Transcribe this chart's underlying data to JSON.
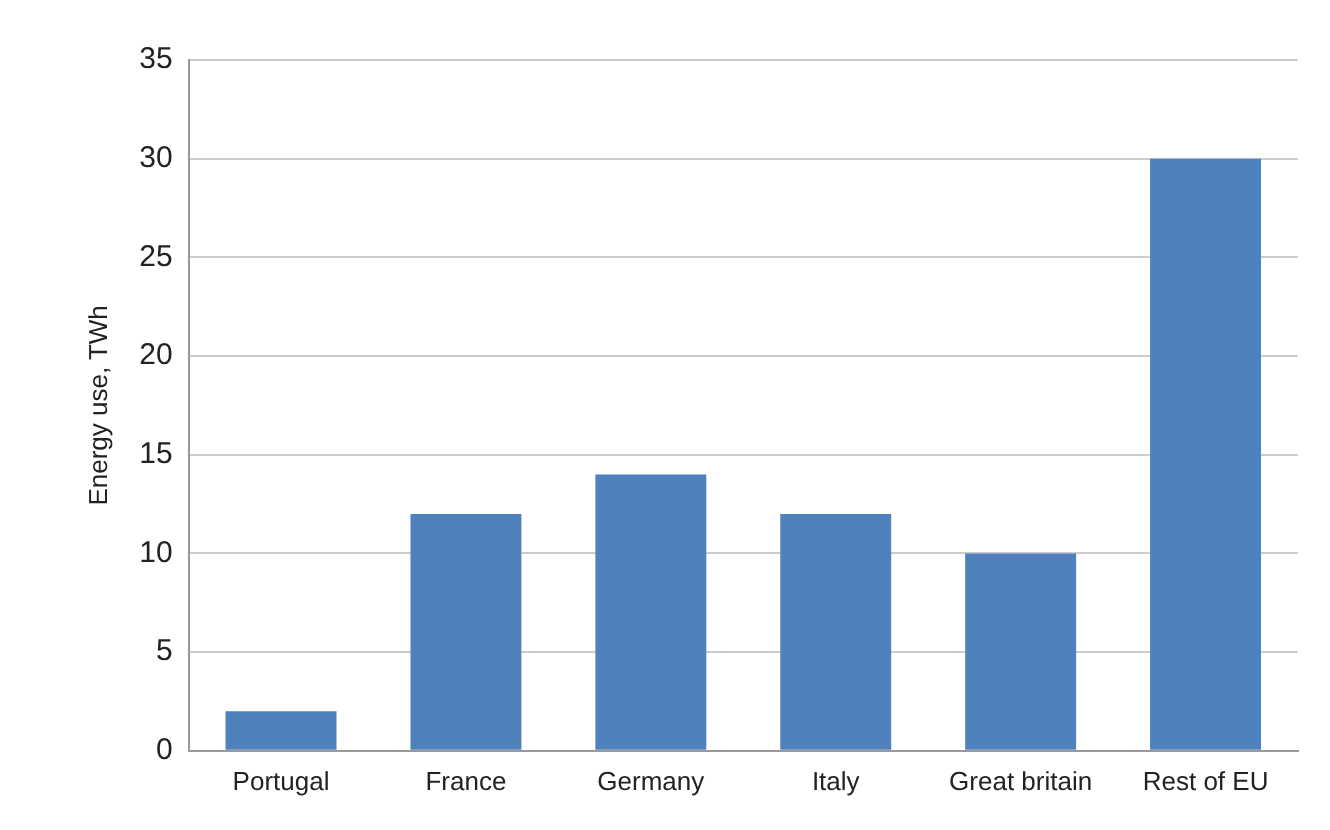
{
  "chart_data": {
    "type": "bar",
    "ylabel": "Energy use, TWh",
    "categories": [
      "Portugal",
      "France",
      "Germany",
      "Italy",
      "Great britain",
      "Rest of EU"
    ],
    "values": [
      2,
      12,
      14,
      12,
      10,
      30
    ],
    "color": "#4f81bd",
    "ylim": [
      0,
      35
    ],
    "yticks": [
      0,
      5,
      10,
      15,
      20,
      25,
      30,
      35
    ],
    "grid": "y",
    "legend": false
  }
}
